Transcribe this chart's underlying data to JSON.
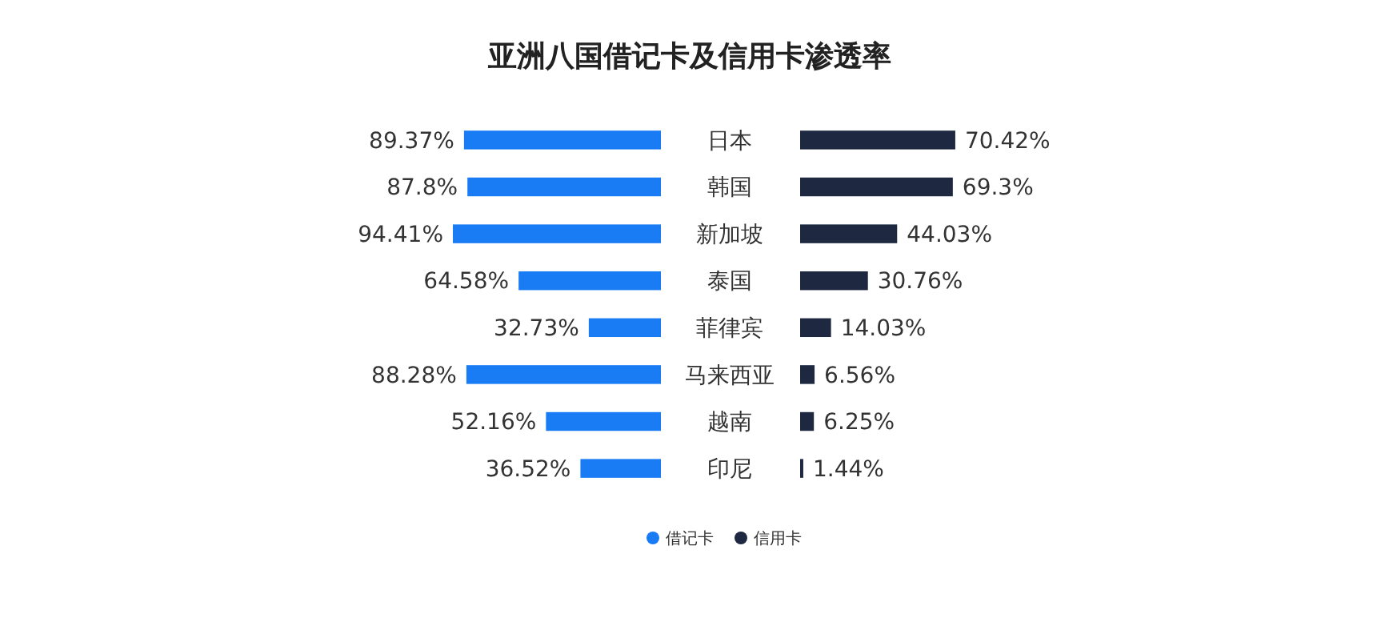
{
  "chart_data": [
    {
      "type": "bar",
      "orientation": "horizontal",
      "title": "亚洲八国借记卡及信用卡渗透率",
      "categories": [
        "日本",
        "韩国",
        "新加坡",
        "泰国",
        "菲律宾",
        "马来西亚",
        "越南",
        "印尼"
      ],
      "series": [
        {
          "name": "借记卡",
          "color": "#1a7cf5",
          "values": [
            89.37,
            87.8,
            94.41,
            64.58,
            32.73,
            88.28,
            52.16,
            36.52
          ],
          "value_labels": [
            "89.37%",
            "87.8%",
            "94.41%",
            "64.58%",
            "32.73%",
            "88.28%",
            "52.16%",
            "36.52%"
          ]
        }
      ],
      "legend": "bottom"
    },
    {
      "type": "bar",
      "orientation": "horizontal",
      "series": [
        {
          "name": "信用卡",
          "color": "#1e2840",
          "values": [
            70.42,
            69.3,
            44.03,
            30.76,
            14.03,
            6.56,
            6.25,
            1.44
          ],
          "value_labels": [
            "70.42%",
            "69.3%",
            "44.03%",
            "30.76%",
            "14.03%",
            "6.56%",
            "6.25%",
            "1.44%"
          ]
        }
      ],
      "legend": "bottom"
    }
  ]
}
